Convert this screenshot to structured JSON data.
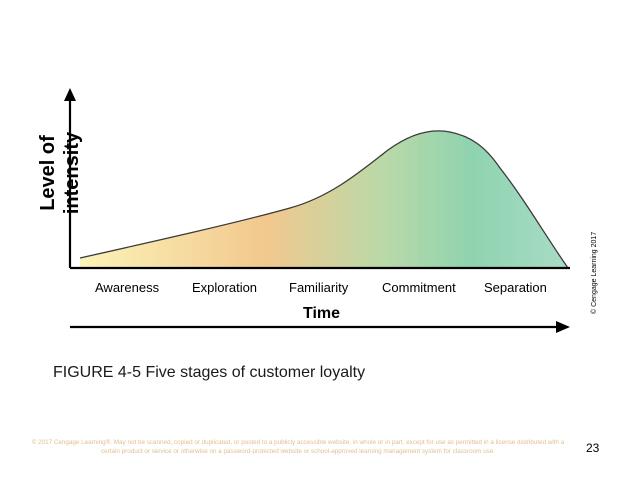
{
  "diagram": {
    "y_axis_label": "Level of intensity",
    "x_axis_label": "Time",
    "stages": [
      "Awareness",
      "Exploration",
      "Familiarity",
      "Commitment",
      "Separation"
    ],
    "gradient_colors": [
      "#fbf3b8",
      "#f2c88e",
      "#b9d9a8",
      "#8fd3b0",
      "#a9dcc6"
    ],
    "curve_shape": "rises slowly from low, accelerates after Familiarity, peaks during Commitment, drops sharply to zero at Separation"
  },
  "source_credit": "© Cengage Learning 2017",
  "caption": "FIGURE 4-5 Five stages of customer loyalty",
  "copyright_notice": "© 2017 Cengage Learning®. May not be scanned, copied or duplicated, or posted to a publicly accessible website, in whole or in part, except for use as permitted in a license distributed with a certain product or service or otherwise on a password-protected website or school-approved learning management system for classroom use.",
  "page_number": "23"
}
